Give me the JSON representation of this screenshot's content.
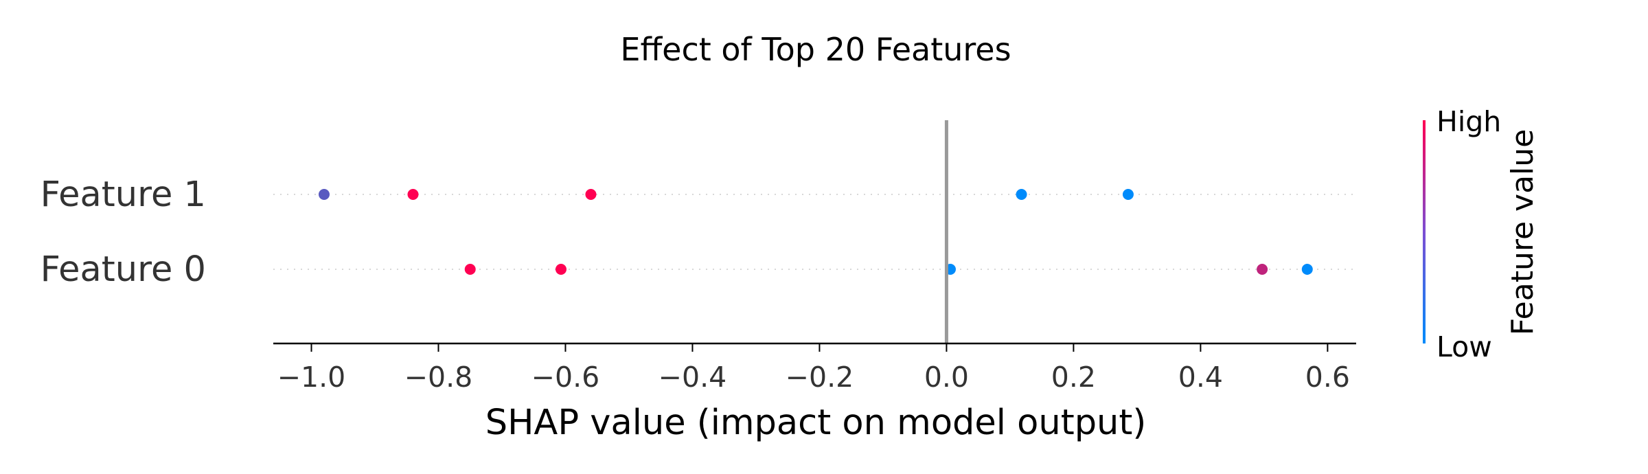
{
  "chart_data": {
    "type": "scatter",
    "title": "Effect of Top 20 Features",
    "xlabel": "SHAP value (impact on model output)",
    "ylabel": "",
    "xlim": [
      -1.06,
      0.645
    ],
    "xticks": [
      -1.0,
      -0.8,
      -0.6,
      -0.4,
      -0.2,
      0.0,
      0.2,
      0.4,
      0.6
    ],
    "xtick_labels": [
      "−1.0",
      "−0.8",
      "−0.6",
      "−0.4",
      "−0.2",
      "0.0",
      "0.2",
      "0.4",
      "0.6"
    ],
    "grid": false,
    "features": [
      {
        "label": "Feature 1",
        "points": [
          {
            "x": -0.98,
            "value": 0.35
          },
          {
            "x": -0.84,
            "value": 1.0
          },
          {
            "x": -0.56,
            "value": 1.0
          },
          {
            "x": 0.118,
            "value": 0.0
          },
          {
            "x": 0.286,
            "value": 0.0
          }
        ]
      },
      {
        "label": "Feature 0",
        "points": [
          {
            "x": -0.75,
            "value": 1.0
          },
          {
            "x": -0.607,
            "value": 1.0
          },
          {
            "x": 0.006,
            "value": 0.0
          },
          {
            "x": 0.497,
            "value": 0.75
          },
          {
            "x": 0.568,
            "value": 0.0
          }
        ]
      }
    ],
    "colorbar": {
      "label": "Feature value",
      "high_label": "High",
      "low_label": "Low",
      "high_color": "#ff0052",
      "low_color": "#008bfb"
    },
    "zero_line_color": "#999999"
  }
}
